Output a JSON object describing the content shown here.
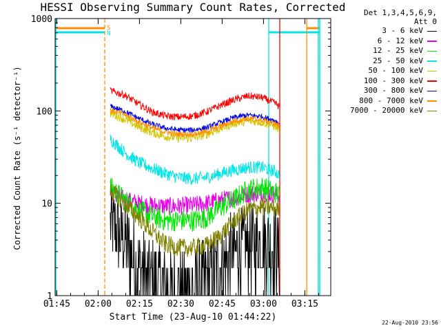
{
  "chart_data": {
    "type": "line",
    "title": "HESSI Observing Summary Count Rates, Corrected",
    "xlabel": "Start Time (23-Aug-10 01:44:22)",
    "ylabel": "Corrected Count Rate (s⁻¹ detector⁻¹)",
    "yscale": "log",
    "ylim": [
      1,
      1000
    ],
    "xlim_minutes": [
      0,
      100
    ],
    "x_ticks": [
      "01:45",
      "02:00",
      "02:15",
      "02:30",
      "02:45",
      "03:00",
      "03:15"
    ],
    "x_tick_minutes": [
      0.6,
      15.6,
      30.6,
      45.6,
      60.6,
      75.6,
      90.6
    ],
    "y_ticks": [
      "1",
      "10",
      "100",
      "1000"
    ],
    "y_tick_values": [
      1,
      10,
      100,
      1000
    ],
    "legend": {
      "header": [
        "Det 1,3,4,5,6,9,",
        "Att 0"
      ],
      "position": "right-outside"
    },
    "annotations": {
      "saa_label": "S",
      "night_label": "N"
    },
    "markers": [
      {
        "type": "night",
        "x": [
          0,
          18
        ],
        "color": "#00e5e5"
      },
      {
        "type": "saa",
        "x": [
          0,
          18
        ],
        "color": "#ff8c00"
      },
      {
        "type": "night",
        "x": [
          77.5,
          96
        ],
        "color": "#00e5e5"
      },
      {
        "type": "saa",
        "x": [
          91.3,
          96
        ],
        "color": "#ff8c00"
      }
    ],
    "vlines": [
      {
        "x": 18,
        "color": "#ff8c00",
        "dash": true
      },
      {
        "x": 77.5,
        "color": "#00e5e5",
        "dash": false
      },
      {
        "x": 81.5,
        "color": "#ff0000",
        "dash": false
      },
      {
        "x": 91.3,
        "color": "#ff8c00",
        "dash": false
      },
      {
        "x": 95.5,
        "color": "#ff8c00",
        "dash": true
      },
      {
        "x": 95.5,
        "color": "#00e5e5",
        "dash": false
      }
    ],
    "x": [
      20,
      25,
      30,
      35,
      40,
      45,
      50,
      55,
      60,
      65,
      70,
      75,
      80,
      81.5
    ],
    "series": [
      {
        "name": "3 - 6 keV",
        "color": "#000000",
        "noise": 0.45,
        "values": [
          6,
          4,
          2.2,
          1.5,
          1.2,
          1.1,
          1.2,
          1.5,
          2.2,
          3,
          3.5,
          3.8,
          3.5,
          2.5
        ]
      },
      {
        "name": "6 - 12 keV",
        "color": "#e600e6",
        "noise": 0.1,
        "values": [
          13,
          11,
          10,
          9.5,
          9.3,
          9.3,
          9.5,
          10,
          10.8,
          11.5,
          12.5,
          13,
          12.5,
          12
        ]
      },
      {
        "name": "12 - 25 keV",
        "color": "#00e600",
        "noise": 0.12,
        "values": [
          15,
          11,
          8.5,
          7.2,
          6.5,
          6.5,
          6.5,
          7,
          9,
          11,
          14,
          15,
          13,
          12
        ]
      },
      {
        "name": "25 - 50 keV",
        "color": "#00e5e5",
        "noise": 0.07,
        "values": [
          50,
          36,
          28,
          24,
          21,
          19,
          18.5,
          19,
          21,
          23,
          24.5,
          24.5,
          22,
          20
        ]
      },
      {
        "name": "50 - 100 keV",
        "color": "#d4c400",
        "noise": 0.05,
        "values": [
          95,
          82,
          68,
          59,
          53,
          51,
          51,
          56,
          65,
          74,
          78,
          76,
          68,
          62
        ]
      },
      {
        "name": "100 - 300 keV",
        "color": "#ff0000",
        "noise": 0.04,
        "values": [
          165,
          150,
          120,
          98,
          88,
          86,
          88,
          98,
          115,
          132,
          145,
          140,
          120,
          110
        ]
      },
      {
        "name": "300 - 800 keV",
        "color": "#0000e6",
        "noise": 0.03,
        "values": [
          112,
          100,
          84,
          72,
          65,
          62,
          62,
          66,
          75,
          85,
          90,
          87,
          78,
          72
        ]
      },
      {
        "name": "800 - 7000 keV",
        "color": "#ff8c00",
        "noise": 0.03,
        "values": [
          102,
          92,
          77,
          66,
          59,
          56,
          56,
          60,
          68,
          78,
          83,
          80,
          73,
          68
        ]
      },
      {
        "name": "7000 - 20000 keV",
        "color": "#808000",
        "noise": 0.1,
        "values": [
          14,
          10,
          7.2,
          5,
          3.6,
          3.3,
          3.3,
          3.5,
          4.5,
          6.5,
          8.5,
          9.2,
          8.8,
          8.5
        ]
      }
    ]
  },
  "timestamp": "22-Aug-2010 23:56"
}
